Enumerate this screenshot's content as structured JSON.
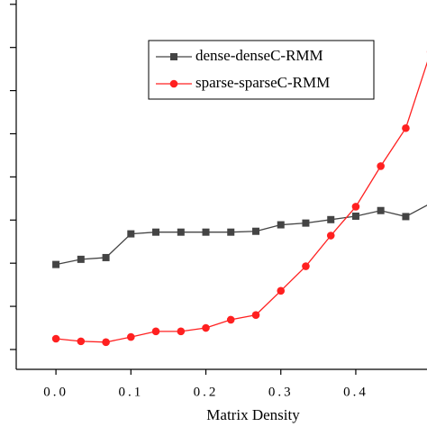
{
  "chart_data": {
    "type": "line",
    "x_label": "Matrix Density",
    "x": [
      0,
      0.0333,
      0.0667,
      0.1,
      0.1333,
      0.1667,
      0.2,
      0.2333,
      0.2667,
      0.3,
      0.3333,
      0.3667,
      0.4,
      0.4333,
      0.4667,
      0.5
    ],
    "series": [
      {
        "name": "dense-denseC-RMM",
        "color": "#444444",
        "marker": "square",
        "values": [
          29.7,
          30.9,
          31.3,
          36.8,
          37.2,
          37.2,
          37.2,
          37.2,
          37.4,
          38.9,
          39.3,
          40.1,
          40.9,
          42.2,
          40.8,
          43.9
        ]
      },
      {
        "name": "sparse-sparseC-RMM",
        "color": "#ff2020",
        "marker": "circle",
        "values": [
          12.5,
          11.9,
          11.7,
          12.9,
          14.2,
          14.2,
          15.0,
          16.9,
          18.0,
          23.6,
          29.3,
          36.4,
          43.1,
          52.5,
          61.3,
          79.0
        ]
      }
    ],
    "xlim": [
      -0.053,
      0.495
    ],
    "ylim": [
      5.4,
      91
    ],
    "xticks": [
      {
        "value": 0,
        "label": "0.0"
      },
      {
        "value": 0.1,
        "label": "0.1"
      },
      {
        "value": 0.2,
        "label": "0.2"
      },
      {
        "value": 0.3,
        "label": "0.3"
      },
      {
        "value": 0.4,
        "label": "0.4"
      }
    ],
    "yticks": [
      10,
      20,
      30,
      40,
      50,
      60,
      70,
      80,
      90
    ]
  }
}
